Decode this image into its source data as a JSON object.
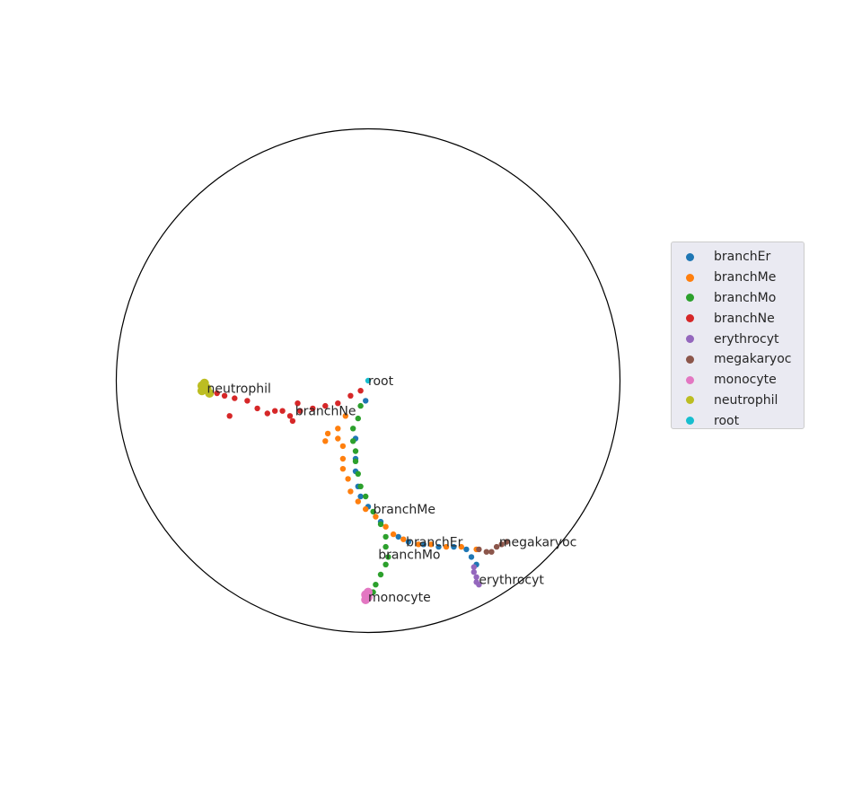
{
  "chart_data": {
    "type": "scatter",
    "title": "",
    "xlabel": "",
    "ylabel": "",
    "projection": "poincare-disk",
    "xlim": [
      -1,
      1
    ],
    "ylim": [
      -1,
      1
    ],
    "grid": false,
    "legend_position": "right",
    "series": [
      {
        "name": "branchEr",
        "color": "#1f77b4",
        "points": [
          [
            -0.01,
            -0.08
          ],
          [
            -0.05,
            -0.23
          ],
          [
            -0.05,
            -0.31
          ],
          [
            -0.05,
            -0.36
          ],
          [
            -0.04,
            -0.42
          ],
          [
            -0.03,
            -0.46
          ],
          [
            0.0,
            -0.5
          ],
          [
            0.05,
            -0.56
          ],
          [
            0.12,
            -0.62
          ],
          [
            0.16,
            -0.64
          ],
          [
            0.22,
            -0.65
          ],
          [
            0.28,
            -0.66
          ],
          [
            0.34,
            -0.66
          ],
          [
            0.39,
            -0.67
          ],
          [
            0.41,
            -0.7
          ],
          [
            0.43,
            -0.73
          ]
        ]
      },
      {
        "name": "branchMe",
        "color": "#ff7f0e",
        "points": [
          [
            -0.09,
            -0.14
          ],
          [
            -0.12,
            -0.19
          ],
          [
            -0.16,
            -0.21
          ],
          [
            -0.17,
            -0.24
          ],
          [
            -0.12,
            -0.23
          ],
          [
            -0.1,
            -0.26
          ],
          [
            -0.1,
            -0.31
          ],
          [
            -0.1,
            -0.35
          ],
          [
            -0.08,
            -0.39
          ],
          [
            -0.07,
            -0.44
          ],
          [
            -0.04,
            -0.48
          ],
          [
            -0.01,
            -0.51
          ],
          [
            0.03,
            -0.54
          ],
          [
            0.07,
            -0.58
          ],
          [
            0.1,
            -0.61
          ],
          [
            0.14,
            -0.63
          ],
          [
            0.2,
            -0.65
          ],
          [
            0.25,
            -0.65
          ],
          [
            0.31,
            -0.66
          ],
          [
            0.37,
            -0.66
          ],
          [
            0.43,
            -0.67
          ]
        ]
      },
      {
        "name": "branchMo",
        "color": "#2ca02c",
        "points": [
          [
            -0.03,
            -0.1
          ],
          [
            -0.04,
            -0.15
          ],
          [
            -0.06,
            -0.19
          ],
          [
            -0.06,
            -0.24
          ],
          [
            -0.05,
            -0.28
          ],
          [
            -0.05,
            -0.32
          ],
          [
            -0.04,
            -0.37
          ],
          [
            -0.03,
            -0.42
          ],
          [
            -0.01,
            -0.46
          ],
          [
            0.02,
            -0.52
          ],
          [
            0.05,
            -0.57
          ],
          [
            0.07,
            -0.62
          ],
          [
            0.07,
            -0.66
          ],
          [
            0.08,
            -0.7
          ],
          [
            0.07,
            -0.73
          ],
          [
            0.05,
            -0.77
          ],
          [
            0.03,
            -0.81
          ],
          [
            0.02,
            -0.84
          ]
        ]
      },
      {
        "name": "branchNe",
        "color": "#d62728",
        "points": [
          [
            -0.03,
            -0.04
          ],
          [
            -0.07,
            -0.06
          ],
          [
            -0.12,
            -0.09
          ],
          [
            -0.17,
            -0.1
          ],
          [
            -0.22,
            -0.11
          ],
          [
            -0.27,
            -0.12
          ],
          [
            -0.31,
            -0.14
          ],
          [
            -0.34,
            -0.12
          ],
          [
            -0.37,
            -0.12
          ],
          [
            -0.4,
            -0.13
          ],
          [
            -0.44,
            -0.11
          ],
          [
            -0.48,
            -0.08
          ],
          [
            -0.53,
            -0.07
          ],
          [
            -0.57,
            -0.06
          ],
          [
            -0.6,
            -0.05
          ],
          [
            -0.55,
            -0.14
          ],
          [
            -0.3,
            -0.16
          ],
          [
            -0.28,
            -0.09
          ]
        ]
      },
      {
        "name": "erythrocyt",
        "color": "#9467bd",
        "points": [
          [
            0.42,
            -0.74
          ],
          [
            0.42,
            -0.76
          ],
          [
            0.43,
            -0.78
          ],
          [
            0.43,
            -0.8
          ],
          [
            0.44,
            -0.81
          ]
        ]
      },
      {
        "name": "megakaryoc",
        "color": "#8c564b",
        "points": [
          [
            0.44,
            -0.67
          ],
          [
            0.47,
            -0.68
          ],
          [
            0.49,
            -0.68
          ],
          [
            0.51,
            -0.66
          ],
          [
            0.53,
            -0.65
          ],
          [
            0.55,
            -0.64
          ]
        ]
      },
      {
        "name": "monocyte",
        "color": "#e377c2",
        "points": [
          [
            -0.01,
            -0.85
          ],
          [
            -0.01,
            -0.87
          ],
          [
            0.0,
            -0.86
          ],
          [
            0.0,
            -0.84
          ]
        ]
      },
      {
        "name": "neutrophil",
        "color": "#bcbd22",
        "points": [
          [
            -0.66,
            -0.02
          ],
          [
            -0.64,
            -0.03
          ],
          [
            -0.66,
            -0.04
          ],
          [
            -0.63,
            -0.05
          ],
          [
            -0.65,
            -0.01
          ]
        ]
      },
      {
        "name": "root",
        "color": "#17becf",
        "points": [
          [
            0.0,
            0.0
          ]
        ]
      }
    ],
    "annotations": [
      {
        "text": "root",
        "x": 0.0,
        "y": 0.0
      },
      {
        "text": "neutrophil",
        "x": -0.64,
        "y": -0.03
      },
      {
        "text": "branchNe",
        "x": -0.29,
        "y": -0.12
      },
      {
        "text": "branchMe",
        "x": 0.02,
        "y": -0.51
      },
      {
        "text": "branchEr",
        "x": 0.15,
        "y": -0.64
      },
      {
        "text": "branchMo",
        "x": 0.04,
        "y": -0.69
      },
      {
        "text": "megakaryoc",
        "x": 0.52,
        "y": -0.64
      },
      {
        "text": "erythrocyt",
        "x": 0.44,
        "y": -0.79
      },
      {
        "text": "monocyte",
        "x": 0.0,
        "y": -0.86
      }
    ]
  }
}
